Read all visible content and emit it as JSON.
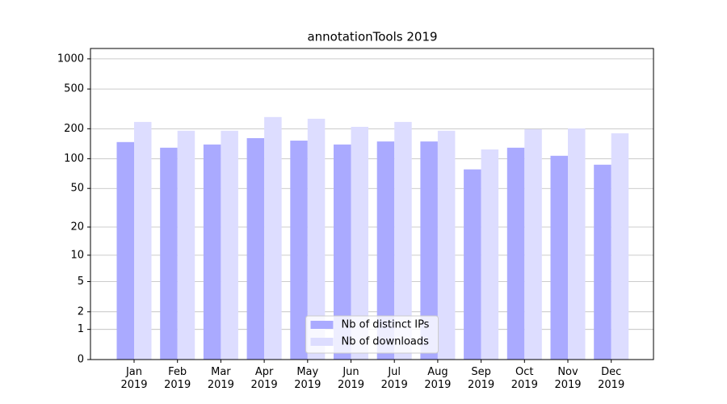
{
  "chart_data": {
    "type": "bar",
    "title": "annotationTools 2019",
    "categories": [
      "Jan 2019",
      "Feb 2019",
      "Mar 2019",
      "Apr 2019",
      "May 2019",
      "Jun 2019",
      "Jul 2019",
      "Aug 2019",
      "Sep 2019",
      "Oct 2019",
      "Nov 2019",
      "Dec 2019"
    ],
    "series": [
      {
        "name": "Nb of distinct IPs",
        "color": "#aaaaff",
        "values": [
          147,
          129,
          139,
          161,
          152,
          139,
          149,
          149,
          78,
          129,
          107,
          87
        ]
      },
      {
        "name": "Nb of downloads",
        "color": "#ddddff",
        "values": [
          234,
          191,
          191,
          262,
          252,
          209,
          234,
          191,
          124,
          198,
          201,
          180
        ]
      }
    ],
    "yscale": "log1p",
    "ylim": [
      0,
      1270
    ],
    "yticks": [
      0,
      1,
      2,
      5,
      10,
      20,
      50,
      100,
      200,
      500,
      1000
    ],
    "grid": true,
    "legend": "lower center"
  }
}
